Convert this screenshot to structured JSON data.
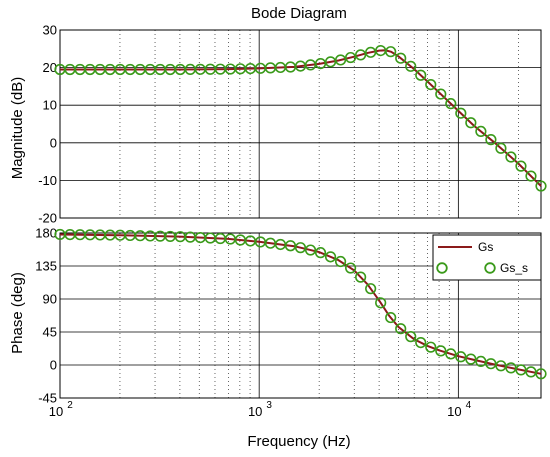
{
  "chart_data": [
    {
      "type": "line",
      "title": "Bode Diagram",
      "ylabel": "Magnitude (dB)",
      "xlabel": "",
      "xscale": "log",
      "xlim": [
        100,
        26000
      ],
      "ylim": [
        -20,
        30
      ],
      "yticks": [
        "30",
        "20",
        "10",
        "0",
        "-10",
        "-20"
      ],
      "grid": true,
      "series": [
        {
          "name": "Gs",
          "style": "line",
          "color": "#8b1a1a",
          "x": [
            100,
            200,
            400,
            700,
            1000,
            1500,
            2000,
            2500,
            3000,
            3500,
            4000,
            4300,
            4600,
            5000,
            6000,
            7000,
            8000,
            10000,
            12000,
            15000,
            20000,
            26000
          ],
          "y": [
            19.5,
            19.5,
            19.5,
            19.6,
            19.8,
            20.2,
            21.0,
            21.9,
            22.9,
            23.9,
            24.5,
            24.6,
            24.2,
            23.0,
            19.6,
            16.3,
            13.4,
            8.5,
            4.5,
            0.3,
            -5.5,
            -11.5
          ]
        },
        {
          "name": "Gs_s",
          "style": "markers",
          "color": "#3a9a1a",
          "x": [
            100,
            200,
            400,
            700,
            1000,
            1500,
            2000,
            2500,
            3000,
            3500,
            4000,
            4300,
            4600,
            5000,
            6000,
            7000,
            8000,
            10000,
            12000,
            15000,
            20000,
            26000
          ],
          "y": [
            19.5,
            19.5,
            19.5,
            19.6,
            19.8,
            20.2,
            21.0,
            21.9,
            22.9,
            23.9,
            24.5,
            24.6,
            24.2,
            23.0,
            19.6,
            16.3,
            13.4,
            8.5,
            4.5,
            0.3,
            -5.5,
            -11.5
          ]
        }
      ]
    },
    {
      "type": "line",
      "title": "",
      "ylabel": "Phase (deg)",
      "xlabel": "Frequency  (Hz)",
      "xscale": "log",
      "xlim": [
        100,
        26000
      ],
      "ylim": [
        -45,
        180
      ],
      "yticks": [
        "180",
        "135",
        "90",
        "45",
        "0",
        "-45"
      ],
      "xticks": [
        {
          "base": "10",
          "exp": "2"
        },
        {
          "base": "10",
          "exp": "3"
        },
        {
          "base": "10",
          "exp": "4"
        }
      ],
      "grid": true,
      "legend": {
        "placement": "top-right",
        "entries": [
          "Gs",
          "Gs_s"
        ]
      },
      "series": [
        {
          "name": "Gs",
          "style": "line",
          "color": "#8b1a1a",
          "x": [
            100,
            200,
            400,
            700,
            1000,
            1500,
            2000,
            2500,
            3000,
            3500,
            4000,
            4500,
            5000,
            6000,
            7000,
            8000,
            10000,
            12000,
            15000,
            20000,
            26000
          ],
          "y": [
            178,
            177,
            175,
            172,
            168,
            162,
            154,
            143,
            129,
            110,
            88,
            67,
            52,
            35,
            26,
            20,
            12,
            7,
            1,
            -6,
            -12
          ]
        },
        {
          "name": "Gs_s",
          "style": "markers",
          "color": "#3a9a1a",
          "x": [
            100,
            200,
            400,
            700,
            1000,
            1500,
            2000,
            2500,
            3000,
            3500,
            4000,
            4500,
            5000,
            6000,
            7000,
            8000,
            10000,
            12000,
            15000,
            20000,
            26000
          ],
          "y": [
            178,
            177,
            175,
            172,
            168,
            162,
            154,
            143,
            129,
            110,
            88,
            67,
            52,
            35,
            26,
            20,
            12,
            7,
            1,
            -6,
            -12
          ]
        }
      ]
    }
  ]
}
